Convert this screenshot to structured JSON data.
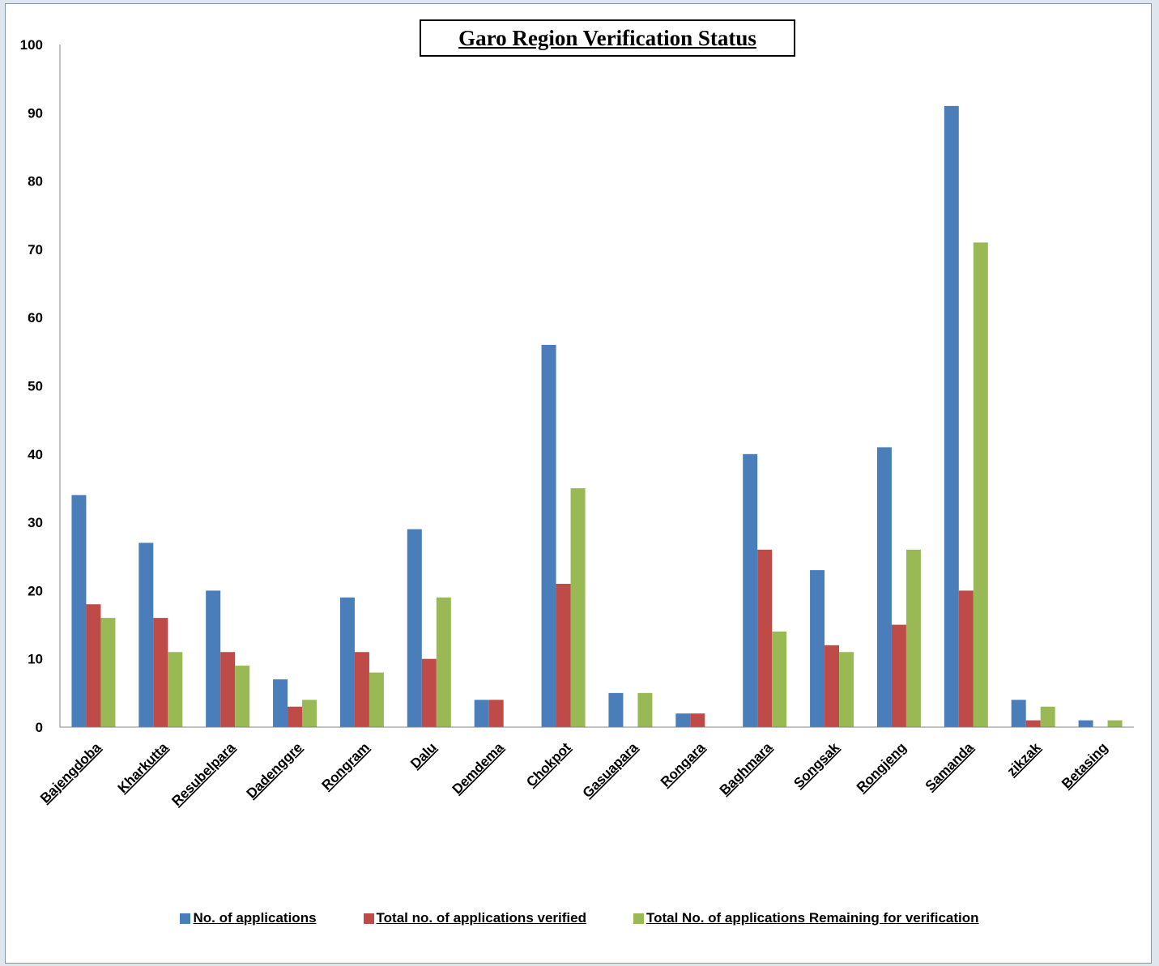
{
  "chart_data": {
    "type": "bar",
    "title": "Garo Region Verification Status",
    "xlabel": "",
    "ylabel": "",
    "ylim": [
      0,
      100
    ],
    "yticks": [
      "0",
      "10",
      "20",
      "30",
      "40",
      "50",
      "60",
      "70",
      "80",
      "90",
      "100"
    ],
    "categories": [
      "Bajengdoba",
      "Kharkutta",
      "Resubelpara",
      "Dadenggre",
      "Rongram",
      "Dalu",
      "Demdema",
      "Chokpot",
      "Gasuapara",
      "Rongara",
      "Baghmara",
      "Songsak",
      "Rongjeng",
      "Samanda",
      "zikzak",
      "Betasing"
    ],
    "series": [
      {
        "name": "No. of applications",
        "color": "#4a7ebb",
        "values": [
          34,
          27,
          20,
          7,
          19,
          29,
          4,
          56,
          5,
          2,
          40,
          23,
          41,
          91,
          4,
          1
        ]
      },
      {
        "name": "Total no. of applications verified",
        "color": "#be4b48",
        "values": [
          18,
          16,
          11,
          3,
          11,
          10,
          4,
          21,
          0,
          2,
          26,
          12,
          15,
          20,
          1,
          0
        ]
      },
      {
        "name": "Total No. of applications Remaining for verification",
        "color": "#98b954",
        "values": [
          16,
          11,
          9,
          4,
          8,
          19,
          0,
          35,
          5,
          0,
          14,
          11,
          26,
          71,
          3,
          1
        ]
      }
    ],
    "grid": false,
    "legend_position": "bottom"
  }
}
